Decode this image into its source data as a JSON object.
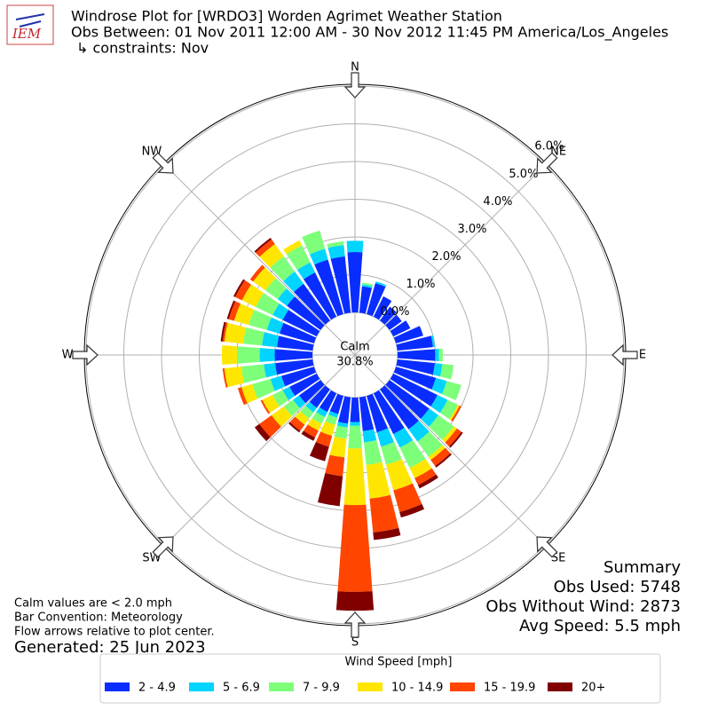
{
  "chart_data": {
    "type": "windrose",
    "logo_text": "IEM",
    "title": "Windrose Plot for [WRDO3] Worden Agrimet Weather Station",
    "subtitle": "Obs Between: 01 Nov 2011 12:00 AM - 30 Nov 2012 11:45 PM America/Los_Angeles",
    "constraints": "↳ constraints: Nov",
    "compass": [
      "N",
      "NE",
      "E",
      "SE",
      "S",
      "SW",
      "W",
      "NW"
    ],
    "x": [
      0,
      10,
      20,
      30,
      40,
      50,
      60,
      70,
      80,
      90,
      100,
      110,
      120,
      130,
      140,
      150,
      160,
      170,
      180,
      190,
      200,
      210,
      220,
      230,
      240,
      250,
      260,
      270,
      280,
      290,
      300,
      310,
      320,
      330,
      340,
      350
    ],
    "rlim": [
      0,
      6
    ],
    "rticks": [
      {
        "value": 0,
        "label": "0.0%"
      },
      {
        "value": 1,
        "label": "1.0%"
      },
      {
        "value": 2,
        "label": "2.0%"
      },
      {
        "value": 3,
        "label": "3.0%"
      },
      {
        "value": 4,
        "label": "4.0%"
      },
      {
        "value": 5,
        "label": "5.0%"
      },
      {
        "value": 6,
        "label": "6.0%"
      }
    ],
    "calm": {
      "label": "Calm",
      "value": 30.8,
      "value_label": "30.8%"
    },
    "legend_title": "Wind Speed [mph]",
    "series": [
      {
        "name": "2 - 4.9",
        "color": "#0a2dff",
        "values": [
          1.6,
          0.7,
          0.85,
          0.6,
          0.45,
          0.4,
          0.5,
          0.75,
          0.95,
          1.0,
          1.0,
          1.1,
          1.3,
          1.3,
          1.3,
          1.2,
          1.0,
          0.9,
          0.65,
          0.7,
          0.5,
          0.55,
          0.6,
          0.7,
          0.8,
          0.9,
          1.0,
          1.0,
          0.95,
          0.95,
          1.0,
          1.1,
          1.2,
          1.3,
          1.5,
          1.5
        ]
      },
      {
        "name": "5 - 6.9",
        "color": "#00d4ff",
        "values": [
          0.3,
          0.05,
          0.05,
          0,
          0,
          0,
          0,
          0,
          0.05,
          0.1,
          0.2,
          0.3,
          0.3,
          0.3,
          0.4,
          0.4,
          0.4,
          0.3,
          0.1,
          0.1,
          0.1,
          0.15,
          0.15,
          0.2,
          0.2,
          0.3,
          0.3,
          0.4,
          0.4,
          0.35,
          0.3,
          0.3,
          0.4,
          0.3,
          0.3,
          0.3
        ]
      },
      {
        "name": "7 - 9.9",
        "color": "#7dff7a",
        "values": [
          0,
          0.05,
          0,
          0,
          0,
          0,
          0,
          0,
          0,
          0.1,
          0.3,
          0.4,
          0.3,
          0.5,
          0.5,
          0.6,
          0.5,
          0.6,
          0.6,
          0.3,
          0.2,
          0.2,
          0.2,
          0.3,
          0.3,
          0.5,
          0.6,
          0.6,
          0.5,
          0.5,
          0.5,
          0.4,
          0.5,
          0.5,
          0.5,
          0.1
        ]
      },
      {
        "name": "10 - 14.9",
        "color": "#ffe600",
        "values": [
          0,
          0,
          0,
          0,
          0,
          0,
          0,
          0,
          0,
          0,
          0,
          0,
          0.05,
          0.1,
          0.1,
          0.3,
          0.7,
          0.9,
          1.5,
          0.5,
          0.3,
          0.2,
          0.2,
          0.4,
          0.3,
          0.3,
          0.45,
          0.4,
          0.5,
          0.4,
          0.4,
          0.4,
          0.4,
          0.15,
          0,
          0
        ]
      },
      {
        "name": "15 - 19.9",
        "color": "#ff4500",
        "values": [
          0,
          0,
          0,
          0,
          0,
          0,
          0,
          0,
          0,
          0,
          0,
          0,
          0.05,
          0.15,
          0.2,
          0.2,
          0.6,
          0.9,
          2.3,
          0.5,
          0.3,
          0.2,
          0.2,
          0.4,
          0.05,
          0.1,
          0.05,
          0,
          0.05,
          0.15,
          0.2,
          0.1,
          0.15,
          0,
          0,
          0
        ]
      },
      {
        "name": "20+",
        "color": "#800000",
        "values": [
          0,
          0,
          0,
          0,
          0,
          0,
          0,
          0,
          0,
          0,
          0,
          0,
          0,
          0.05,
          0.05,
          0.1,
          0.15,
          0.2,
          0.5,
          0.8,
          0.4,
          0.1,
          0.05,
          0.15,
          0,
          0,
          0,
          0,
          0.05,
          0.05,
          0.05,
          0,
          0.05,
          0,
          0,
          0
        ]
      }
    ],
    "summary": [
      "Summary",
      "Obs Used: 5748",
      "Obs Without Wind: 2873",
      "Avg Speed: 5.5 mph"
    ],
    "notes": [
      "Calm values are < 2.0 mph",
      "Bar Convention: Meteorology",
      "Flow arrows relative to plot center."
    ],
    "generated": "Generated: 25 Jun 2023"
  }
}
